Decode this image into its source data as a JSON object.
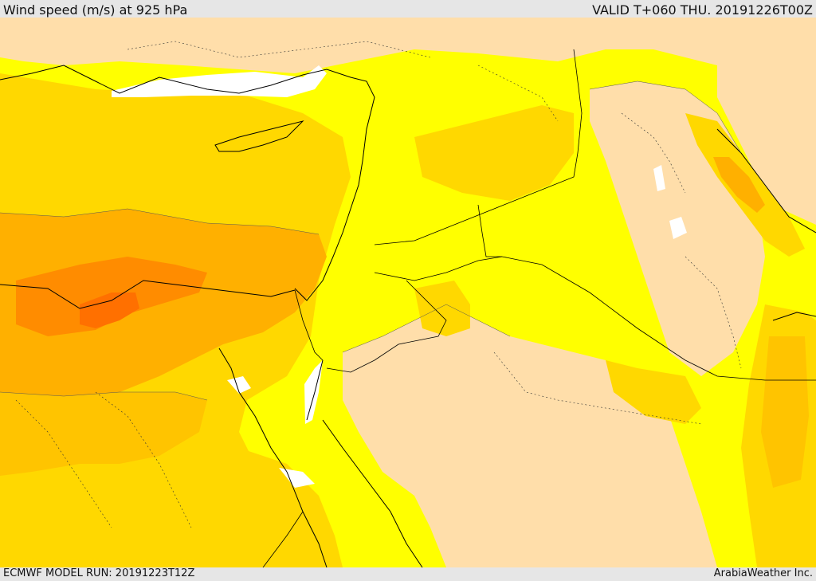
{
  "header": {
    "title": "Wind speed (m/s) at 925 hPa",
    "valid_time": "VALID T+060 THU. 20191226T00Z"
  },
  "footer": {
    "model_run": "ECMWF MODEL RUN: 20191223T12Z",
    "credit": "ArabiaWeather Inc."
  },
  "colors": {
    "calm": "#ffffff",
    "light": "#ffdeaa",
    "moderate": "#ffff00",
    "fresh": "#ffd800",
    "strong": "#ffb000",
    "very_strong": "#ff8c00",
    "gale": "#ff7000",
    "coastline": "#000000"
  }
}
